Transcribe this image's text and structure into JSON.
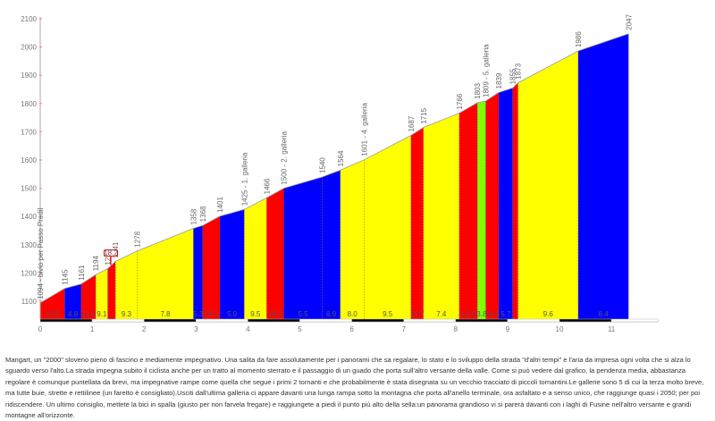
{
  "chart_data": {
    "type": "area",
    "title": "",
    "xlabel": "",
    "ylabel": "",
    "xlim": [
      0,
      12
    ],
    "ylim": [
      1035,
      2100
    ],
    "x_ticks": [
      0,
      1,
      2,
      3,
      4,
      5,
      6,
      7,
      8,
      9,
      10,
      11
    ],
    "y_ticks": [
      1100,
      1200,
      1300,
      1400,
      1500,
      1600,
      1700,
      1800,
      1900,
      2000,
      2100
    ],
    "grid": false,
    "colors": {
      "red": "#ff0000",
      "blue": "#0000ff",
      "yellow": "#ffff00",
      "green": "#80ff00"
    },
    "start": {
      "km": 0,
      "elev": 1094
    },
    "segments": [
      {
        "end_km": 0.47,
        "end_elev": 1145,
        "grade": "10.9",
        "color": "red",
        "divider": "solid"
      },
      {
        "end_km": 0.79,
        "end_elev": 1161,
        "grade": "4.8",
        "color": "blue",
        "divider": "solid"
      },
      {
        "end_km": 1.07,
        "end_elev": 1194,
        "grade": "11.0",
        "color": "red",
        "divider": "solid"
      },
      {
        "end_km": 1.3,
        "end_elev": 1215,
        "grade": "9.1",
        "color": "yellow",
        "divider": "solid"
      },
      {
        "end_km": 1.45,
        "end_elev": 1241,
        "grade": "",
        "color": "red",
        "divider": "solid"
      },
      {
        "end_km": 1.87,
        "end_elev": 1278,
        "grade": "9.3",
        "color": "yellow",
        "divider": "dotted"
      },
      {
        "end_km": 2.95,
        "end_elev": 1358,
        "grade": "7.8",
        "color": "yellow",
        "divider": "solid"
      },
      {
        "end_km": 3.13,
        "end_elev": 1368,
        "grade": "5.3",
        "color": "blue",
        "divider": "solid"
      },
      {
        "end_km": 3.46,
        "end_elev": 1401,
        "grade": "10.3",
        "color": "red",
        "divider": "solid"
      },
      {
        "end_km": 3.93,
        "end_elev": 1425,
        "grade": "5.0",
        "color": "blue",
        "divider": "solid"
      },
      {
        "end_km": 4.36,
        "end_elev": 1466,
        "grade": "9.5",
        "color": "yellow",
        "divider": "solid"
      },
      {
        "end_km": 4.69,
        "end_elev": 1500,
        "grade": "10.3",
        "color": "red",
        "divider": "solid"
      },
      {
        "end_km": 5.43,
        "end_elev": 1540,
        "grade": "5.5",
        "color": "blue",
        "divider": "dotted"
      },
      {
        "end_km": 5.78,
        "end_elev": 1564,
        "grade": "6.9",
        "color": "blue",
        "divider": "solid"
      },
      {
        "end_km": 6.24,
        "end_elev": 1601,
        "grade": "8.0",
        "color": "yellow",
        "divider": "dotted"
      },
      {
        "end_km": 7.14,
        "end_elev": 1687,
        "grade": "9.5",
        "color": "yellow",
        "divider": "solid"
      },
      {
        "end_km": 7.38,
        "end_elev": 1715,
        "grade": "11.7",
        "color": "red",
        "divider": "solid"
      },
      {
        "end_km": 8.07,
        "end_elev": 1766,
        "grade": "7.4",
        "color": "yellow",
        "divider": "solid"
      },
      {
        "end_km": 8.42,
        "end_elev": 1803,
        "grade": "10.6",
        "color": "red",
        "divider": "solid"
      },
      {
        "end_km": 8.58,
        "end_elev": 1809,
        "grade": "3.8",
        "color": "green",
        "divider": "solid"
      },
      {
        "end_km": 8.83,
        "end_elev": 1839,
        "grade": "13.0",
        "color": "red",
        "divider": "solid"
      },
      {
        "end_km": 9.1,
        "end_elev": 1855,
        "grade": "5.7",
        "color": "blue",
        "divider": "solid"
      },
      {
        "end_km": 9.2,
        "end_elev": 1873,
        "grade": "",
        "color": "red",
        "divider": "solid"
      },
      {
        "end_km": 10.36,
        "end_elev": 1986,
        "grade": "9.6",
        "color": "yellow",
        "divider": "solid"
      },
      {
        "end_km": 11.33,
        "end_elev": 2047,
        "grade": "6.4",
        "color": "blue",
        "divider": "none"
      }
    ],
    "point_labels": [
      {
        "km": 0,
        "elev": 1094,
        "text": "1094 - bivio per Passo Predil"
      },
      {
        "km": 0.47,
        "elev": 1145,
        "text": "1145"
      },
      {
        "km": 0.79,
        "elev": 1161,
        "text": "1161"
      },
      {
        "km": 1.07,
        "elev": 1194,
        "text": "1194"
      },
      {
        "km": 1.3,
        "elev": 1215,
        "text": "1215"
      },
      {
        "km": 1.45,
        "elev": 1241,
        "text": "1241"
      },
      {
        "km": 1.87,
        "elev": 1278,
        "text": "1278"
      },
      {
        "km": 2.95,
        "elev": 1358,
        "text": "1358"
      },
      {
        "km": 3.13,
        "elev": 1368,
        "text": "1368"
      },
      {
        "km": 3.46,
        "elev": 1401,
        "text": "1401"
      },
      {
        "km": 3.93,
        "elev": 1425,
        "text": "1425 - 1. galleria"
      },
      {
        "km": 4.36,
        "elev": 1466,
        "text": "1466"
      },
      {
        "km": 4.69,
        "elev": 1500,
        "text": "1500 - 2. galleria"
      },
      {
        "km": 5.43,
        "elev": 1540,
        "text": "1540"
      },
      {
        "km": 5.78,
        "elev": 1564,
        "text": "1564"
      },
      {
        "km": 6.24,
        "elev": 1601,
        "text": "1601 - 4. galleria"
      },
      {
        "km": 7.14,
        "elev": 1687,
        "text": "1687"
      },
      {
        "km": 7.38,
        "elev": 1715,
        "text": "1715"
      },
      {
        "km": 8.07,
        "elev": 1766,
        "text": "1766"
      },
      {
        "km": 8.42,
        "elev": 1803,
        "text": "1803"
      },
      {
        "km": 8.58,
        "elev": 1809,
        "text": "1809 - 5. galleria"
      },
      {
        "km": 8.83,
        "elev": 1839,
        "text": "1839"
      },
      {
        "km": 9.1,
        "elev": 1855,
        "text": "1855"
      },
      {
        "km": 9.2,
        "elev": 1873,
        "text": "1873"
      },
      {
        "km": 10.36,
        "elev": 1986,
        "text": "1986"
      },
      {
        "km": 11.33,
        "elev": 2047,
        "text": "2047"
      }
    ],
    "max_grade_marker": {
      "km": 1.36,
      "text": "18.2"
    }
  },
  "description": "Mangart, un \"2000\" sloveno pieno di fascino e mediamente impegnativo. Una salita da fare assolutamente per i panorami che sa regalare, lo stato e lo sviluppo della strada \"d'altri tempi\" e l'aria da impresa ogni volta che si alza lo sguardo verso l'alto.La strada impegna subito il ciclista anche per un tratto al momento sterrato e il passaggio di un guado che porta sull'altro versante della valle. Come si può vedere dal grafico, la pendenza media, abbastanza regolare è comunque puntellata da brevi, ma impegnative rampe come quella che segue i primi 2 tornanti e che probabilmente è stata disegnata su un vecchio tracciato di piccoli tornantini.Le gallerie sono 5 di cui la terza molto breve, ma tutte buie, strette e rettilinee (un faretto è consigliato).Usciti dall'ultima galleria ci appare davanti una lunga rampa sotto la montagna che porta all'anello terminale, ora asfaltato e a senso unico, che raggiunge quasi i 2050; per poi ridiscendere. Un ultimo consiglio, mettete la bici in spalla (giusto per non farvela fregare) e raggiungete a piedi il punto più alto della sella:un panorama grandioso vi si parerà davanti con i laghi di Fusine nell'altro versante e grandi montagne all'orizzonte."
}
